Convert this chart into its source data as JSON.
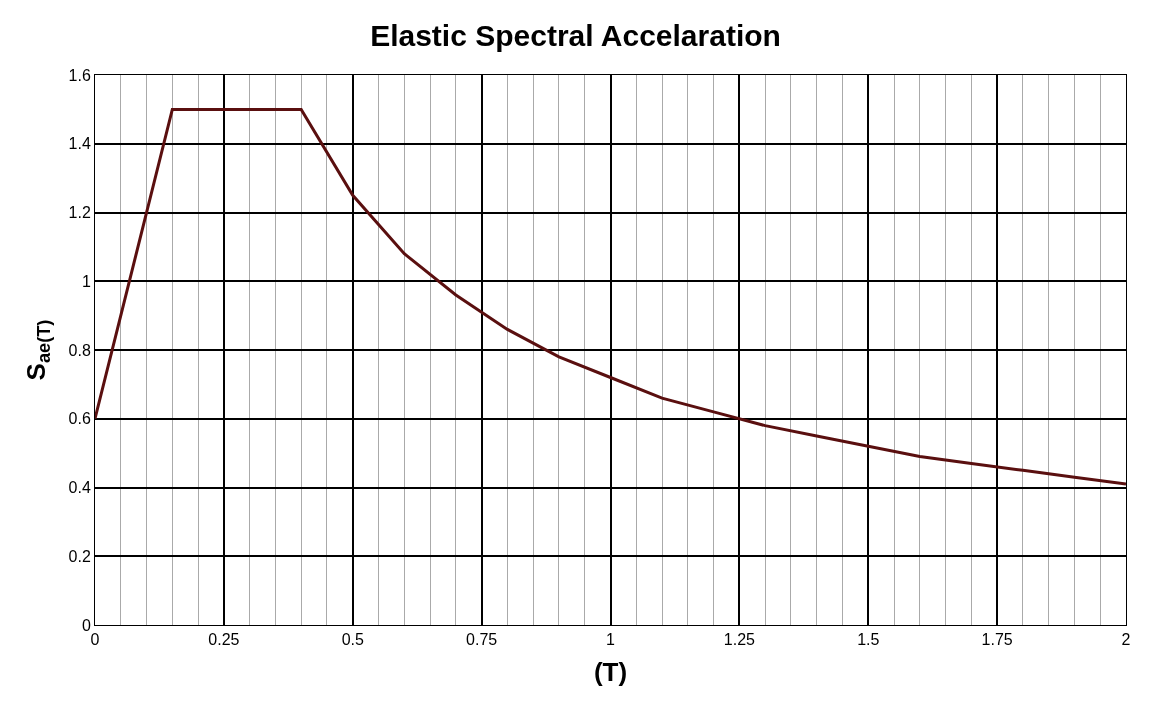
{
  "chart_data": {
    "type": "line",
    "title": "Elastic Spectral Accelaration",
    "xlabel": "(T)",
    "ylabel": "S$_{ae(T)}$",
    "x": [
      0,
      0.15,
      0.4,
      0.5,
      0.6,
      0.7,
      0.8,
      0.9,
      1.0,
      1.1,
      1.2,
      1.3,
      1.4,
      1.5,
      1.6,
      1.7,
      1.8,
      1.9,
      2.0
    ],
    "series": [
      {
        "color": "#5a0f0f",
        "values": [
          0.6,
          1.5,
          1.5,
          1.25,
          1.08,
          0.96,
          0.86,
          0.78,
          0.72,
          0.66,
          0.62,
          0.58,
          0.55,
          0.52,
          0.49,
          0.47,
          0.45,
          0.43,
          0.41
        ]
      }
    ],
    "xlim": [
      0,
      2
    ],
    "xticks": [
      0,
      0.25,
      0.5,
      0.75,
      1,
      1.25,
      1.5,
      1.75,
      2
    ],
    "ylim": [
      0,
      1.6
    ],
    "yticks": [
      0,
      0.2,
      0.4,
      0.6,
      0.8,
      1,
      1.2,
      1.4,
      1.6
    ],
    "grid": true,
    "marker": "none",
    "line_style": "solid"
  }
}
